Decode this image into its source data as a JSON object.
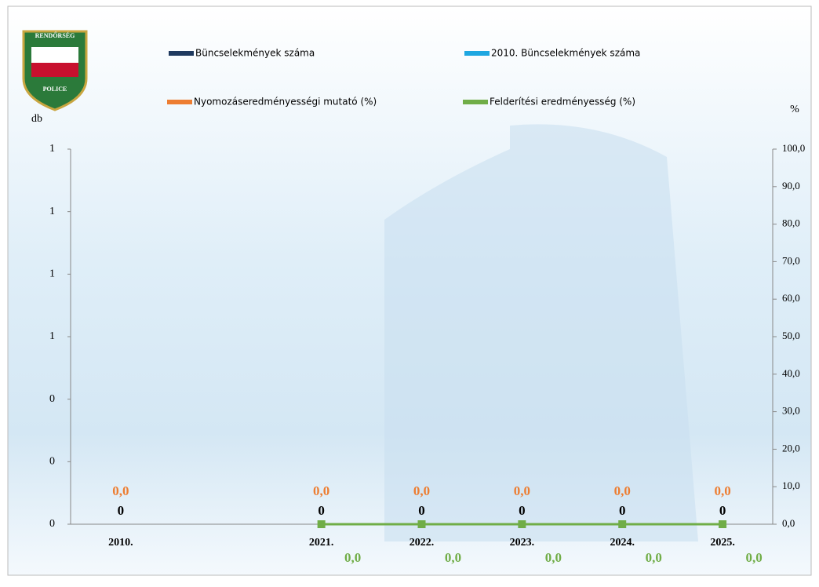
{
  "logo": {
    "top": "RENDŐRSÉG",
    "bottom": "POLICE"
  },
  "chart_data": {
    "type": "bar",
    "y_label": "db",
    "y2_label": "%",
    "categories": [
      "2010.",
      null,
      "2021.",
      "2022.",
      "2023.",
      "2024.",
      "2025."
    ],
    "ylim": [
      0,
      1.2
    ],
    "yticks": [
      0,
      {
        "value": 0.2,
        "label": "0"
      },
      {
        "value": 0.4,
        "label": "0"
      },
      {
        "value": 0.6,
        "label": "1"
      },
      {
        "value": 0.8,
        "label": "1"
      },
      {
        "value": 1.0,
        "label": "1"
      },
      {
        "value": 1.2,
        "label": "1"
      }
    ],
    "y2lim": [
      0,
      100
    ],
    "y2ticks": [
      {
        "value": 0,
        "label": "0,0"
      },
      {
        "value": 10,
        "label": "10,0"
      },
      {
        "value": 20,
        "label": "20,0"
      },
      {
        "value": 30,
        "label": "30,0"
      },
      {
        "value": 40,
        "label": "40,0"
      },
      {
        "value": 50,
        "label": "50,0"
      },
      {
        "value": 60,
        "label": "60,0"
      },
      {
        "value": 70,
        "label": "70,0"
      },
      {
        "value": 80,
        "label": "80,0"
      },
      {
        "value": 90,
        "label": "90,0"
      },
      {
        "value": 100,
        "label": "100,0"
      }
    ],
    "series": [
      {
        "name": "Büncselekmények száma",
        "type": "bar",
        "color": "#1f3a5f",
        "values": [
          0,
          null,
          0,
          0,
          0,
          0,
          0
        ]
      },
      {
        "name": "2010. Büncselekmények száma",
        "type": "line",
        "color": "#1ea7e1",
        "values": [
          null,
          null,
          null,
          null,
          null,
          null,
          null
        ]
      },
      {
        "name": "Nyomozáseredményességi mutató (%)",
        "type": "line",
        "axis": "y2",
        "color": "#ed7d31",
        "values": [
          0,
          null,
          0,
          0,
          0,
          0,
          0
        ],
        "value_labels": [
          "0,0",
          null,
          "0,0",
          "0,0",
          "0,0",
          "0,0",
          "0,0"
        ]
      },
      {
        "name": "Felderítési eredményesség (%)",
        "type": "line",
        "axis": "y2",
        "color": "#70ad47",
        "values": [
          null,
          null,
          0,
          0,
          0,
          0,
          0
        ],
        "value_labels": [
          null,
          null,
          "0,0",
          "0,0",
          "0,0",
          "0,0",
          "0,0"
        ]
      }
    ]
  }
}
